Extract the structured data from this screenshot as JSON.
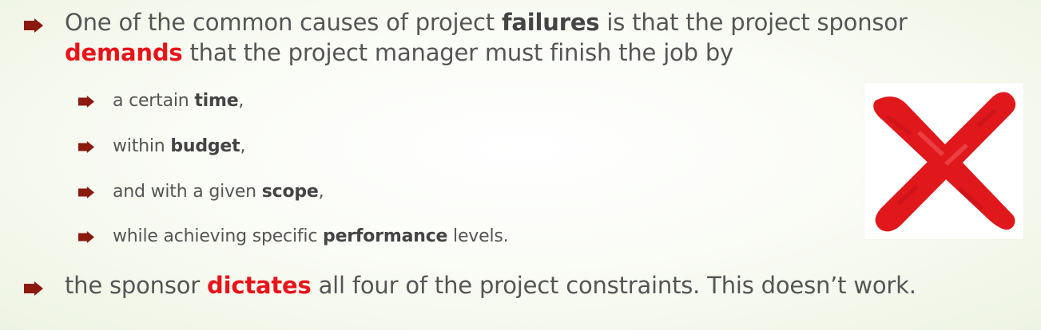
{
  "slide": {
    "bullets": [
      {
        "level": 1,
        "parts": [
          {
            "text": "One of the common causes of project ",
            "style": "plain"
          },
          {
            "text": "failures",
            "style": "bold"
          },
          {
            "text": " is that the project sponsor",
            "style": "plain"
          }
        ]
      },
      {
        "level": 1,
        "continuation": true,
        "parts": [
          {
            "text": "demands",
            "style": "red-bold"
          },
          {
            "text": " that the project manager must finish the job by",
            "style": "plain"
          }
        ]
      },
      {
        "level": 2,
        "parts": [
          {
            "text": "a certain ",
            "style": "plain"
          },
          {
            "text": "time",
            "style": "bold"
          },
          {
            "text": ",",
            "style": "plain"
          }
        ]
      },
      {
        "level": 2,
        "parts": [
          {
            "text": "within ",
            "style": "plain"
          },
          {
            "text": "budget",
            "style": "bold"
          },
          {
            "text": ",",
            "style": "plain"
          }
        ]
      },
      {
        "level": 2,
        "parts": [
          {
            "text": "and with a given ",
            "style": "plain"
          },
          {
            "text": "scope",
            "style": "bold"
          },
          {
            "text": ",",
            "style": "plain"
          }
        ]
      },
      {
        "level": 2,
        "parts": [
          {
            "text": "while achieving specific ",
            "style": "plain"
          },
          {
            "text": "performance",
            "style": "bold"
          },
          {
            "text": " levels.",
            "style": "plain"
          }
        ]
      },
      {
        "level": 1,
        "parts": [
          {
            "text": "the sponsor ",
            "style": "plain"
          },
          {
            "text": "dictates",
            "style": "red-bold"
          },
          {
            "text": " all four of the project constraints. This doesn’t work.",
            "style": "plain"
          }
        ]
      }
    ],
    "colors": {
      "text": "#555555",
      "bold": "#444444",
      "emphasis_red": "#e8141a",
      "bullet_arrow": "#8b1a0e",
      "x_mark": "#e0181c"
    },
    "image": {
      "icon": "red-x-mark-icon"
    }
  }
}
